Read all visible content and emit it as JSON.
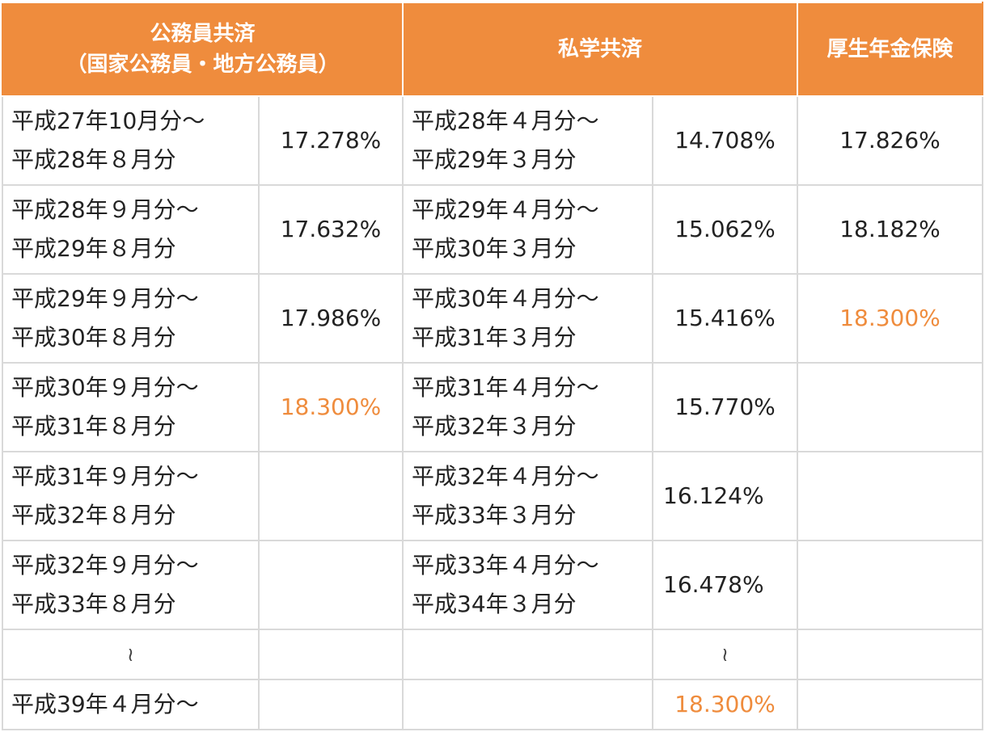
{
  "header": {
    "col1_line1": "公務員共済",
    "col1_line2": "（国家公務員・地方公務員）",
    "col2": "私学共済",
    "col3": "厚生年金保険"
  },
  "rows": [
    {
      "koumuin_period_1": "平成27年10月分〜",
      "koumuin_period_2": "平成28年８月分",
      "koumuin_rate": "17.278%",
      "shigaku_period_1": "平成28年４月分〜",
      "shigaku_period_2": "平成29年３月分",
      "shigaku_rate": "14.708%",
      "kousei_rate": "17.826%"
    },
    {
      "koumuin_period_1": "平成28年９月分〜",
      "koumuin_period_2": "平成29年８月分",
      "koumuin_rate": "17.632%",
      "shigaku_period_1": "平成29年４月分〜",
      "shigaku_period_2": "平成30年３月分",
      "shigaku_rate": "15.062%",
      "kousei_rate": "18.182%"
    },
    {
      "koumuin_period_1": "平成29年９月分〜",
      "koumuin_period_2": "平成30年８月分",
      "koumuin_rate": "17.986%",
      "shigaku_period_1": "平成30年４月分〜",
      "shigaku_period_2": "平成31年３月分",
      "shigaku_rate": "15.416%",
      "kousei_rate": "18.300%"
    },
    {
      "koumuin_period_1": "平成30年９月分〜",
      "koumuin_period_2": "平成31年８月分",
      "koumuin_rate": "18.300%",
      "shigaku_period_1": "平成31年４月分〜",
      "shigaku_period_2": "平成32年３月分",
      "shigaku_rate": "15.770%",
      "kousei_rate": ""
    },
    {
      "koumuin_period_1": "平成31年９月分〜",
      "koumuin_period_2": "平成32年８月分",
      "koumuin_rate": "",
      "shigaku_period_1": "平成32年４月分〜",
      "shigaku_period_2": "平成33年３月分",
      "shigaku_rate": "16.124%",
      "kousei_rate": ""
    },
    {
      "koumuin_period_1": "平成32年９月分〜",
      "koumuin_period_2": "平成33年８月分",
      "koumuin_rate": "",
      "shigaku_period_1": "平成33年４月分〜",
      "shigaku_period_2": "平成34年３月分",
      "shigaku_rate": "16.478%",
      "kousei_rate": ""
    }
  ],
  "gap_row": {
    "koumuin_mark": "≀",
    "shigaku_mark": "≀"
  },
  "final_row": {
    "koumuin_period": "平成39年４月分〜",
    "shigaku_rate": "18.300%"
  },
  "colors": {
    "header_bg": "#ef8c3d",
    "highlight": "#ef8c3d",
    "border": "#d9d9d9"
  }
}
